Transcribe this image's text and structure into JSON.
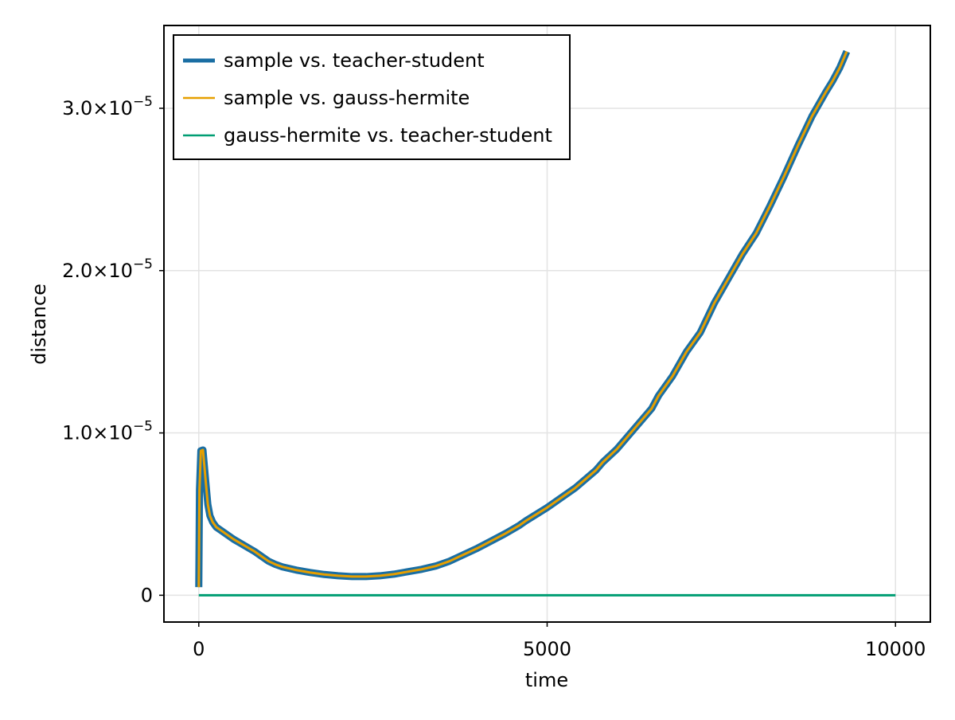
{
  "chart_data": {
    "type": "line",
    "xlabel": "time",
    "ylabel": "distance",
    "xlim": [
      -500,
      10500
    ],
    "ylim": [
      -1.65e-06,
      3.51e-05
    ],
    "x_ticks": [
      {
        "value": 0,
        "label": "0"
      },
      {
        "value": 5000,
        "label": "5000"
      },
      {
        "value": 10000,
        "label": "10000"
      }
    ],
    "y_ticks": [
      {
        "value": 0,
        "mantissa": "0",
        "exponent": ""
      },
      {
        "value": 1e-05,
        "mantissa": "1.0×10",
        "exponent": "−5"
      },
      {
        "value": 2e-05,
        "mantissa": "2.0×10",
        "exponent": "−5"
      },
      {
        "value": 3e-05,
        "mantissa": "3.0×10",
        "exponent": "−5"
      }
    ],
    "grid": true,
    "legend_position": "top-left",
    "series": [
      {
        "name": "sample vs. teacher-student",
        "color": "#1a6ea3",
        "x": [
          0,
          10,
          30,
          60,
          100,
          130,
          160,
          200,
          250,
          300,
          400,
          500,
          600,
          700,
          800,
          900,
          1000,
          1100,
          1200,
          1400,
          1600,
          1800,
          2000,
          2200,
          2400,
          2600,
          2800,
          3000,
          3200,
          3400,
          3600,
          3800,
          4000,
          4200,
          4400,
          4600,
          4700,
          5000,
          5300,
          5400,
          5700,
          5800,
          6000,
          6200,
          6500,
          6600,
          6800,
          7000,
          7200,
          7400,
          7600,
          7800,
          8000,
          8200,
          8400,
          8600,
          8800,
          9000,
          9100,
          9200,
          9300
        ],
        "y": [
          5e-07,
          6.5e-06,
          8.9e-06,
          8.95e-06,
          7e-06,
          5.6e-06,
          4.9e-06,
          4.5e-06,
          4.2e-06,
          4.05e-06,
          3.75e-06,
          3.45e-06,
          3.2e-06,
          2.95e-06,
          2.7e-06,
          2.4e-06,
          2.1e-06,
          1.9e-06,
          1.75e-06,
          1.55e-06,
          1.4e-06,
          1.28e-06,
          1.2e-06,
          1.15e-06,
          1.15e-06,
          1.2e-06,
          1.3e-06,
          1.45e-06,
          1.6e-06,
          1.8e-06,
          2.1e-06,
          2.5e-06,
          2.9e-06,
          3.35e-06,
          3.8e-06,
          4.3e-06,
          4.6e-06,
          5.4e-06,
          6.3e-06,
          6.6e-06,
          7.7e-06,
          8.2e-06,
          9e-06,
          1e-05,
          1.15e-05,
          1.23e-05,
          1.35e-05,
          1.5e-05,
          1.62e-05,
          1.8e-05,
          1.95e-05,
          2.1e-05,
          2.23e-05,
          2.4e-05,
          2.58e-05,
          2.77e-05,
          2.95e-05,
          3.1e-05,
          3.17e-05,
          3.25e-05,
          3.35e-05
        ]
      },
      {
        "name": "sample vs. gauss-hermite",
        "color": "#e69f00",
        "x": [
          0,
          10,
          30,
          60,
          100,
          130,
          160,
          200,
          250,
          300,
          400,
          500,
          600,
          700,
          800,
          900,
          1000,
          1100,
          1200,
          1400,
          1600,
          1800,
          2000,
          2200,
          2400,
          2600,
          2800,
          3000,
          3200,
          3400,
          3600,
          3800,
          4000,
          4200,
          4400,
          4600,
          4700,
          5000,
          5300,
          5400,
          5700,
          5800,
          6000,
          6200,
          6500,
          6600,
          6800,
          7000,
          7200,
          7400,
          7600,
          7800,
          8000,
          8200,
          8400,
          8600,
          8800,
          9000,
          9100,
          9200,
          9300
        ],
        "y": [
          5e-07,
          6.5e-06,
          8.9e-06,
          8.95e-06,
          7e-06,
          5.6e-06,
          4.9e-06,
          4.5e-06,
          4.2e-06,
          4.05e-06,
          3.75e-06,
          3.45e-06,
          3.2e-06,
          2.95e-06,
          2.7e-06,
          2.4e-06,
          2.1e-06,
          1.9e-06,
          1.75e-06,
          1.55e-06,
          1.4e-06,
          1.28e-06,
          1.2e-06,
          1.15e-06,
          1.15e-06,
          1.2e-06,
          1.3e-06,
          1.45e-06,
          1.6e-06,
          1.8e-06,
          2.1e-06,
          2.5e-06,
          2.9e-06,
          3.35e-06,
          3.8e-06,
          4.3e-06,
          4.6e-06,
          5.4e-06,
          6.3e-06,
          6.6e-06,
          7.7e-06,
          8.2e-06,
          9e-06,
          1e-05,
          1.15e-05,
          1.23e-05,
          1.35e-05,
          1.5e-05,
          1.62e-05,
          1.8e-05,
          1.95e-05,
          2.1e-05,
          2.23e-05,
          2.4e-05,
          2.58e-05,
          2.77e-05,
          2.95e-05,
          3.1e-05,
          3.17e-05,
          3.25e-05,
          3.35e-05
        ]
      },
      {
        "name": "gauss-hermite vs. teacher-student",
        "color": "#009e73",
        "x": [
          0,
          10000
        ],
        "y": [
          0,
          0
        ]
      }
    ]
  }
}
